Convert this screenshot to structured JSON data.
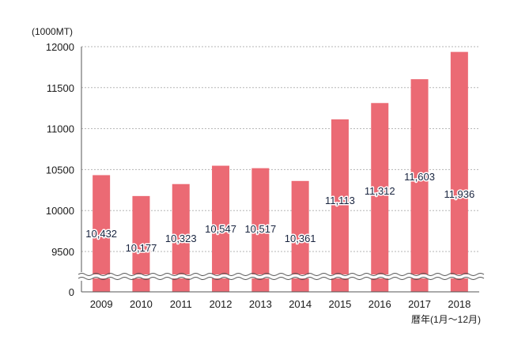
{
  "chart_data": {
    "type": "bar",
    "ylabel": "(1000MT)",
    "xlabel": "暦年(1月〜12月)",
    "categories": [
      "2009",
      "2010",
      "2011",
      "2012",
      "2013",
      "2014",
      "2015",
      "2016",
      "2017",
      "2018"
    ],
    "values": [
      10432,
      10177,
      10323,
      10547,
      10517,
      10361,
      11113,
      11312,
      11603,
      11936
    ],
    "value_labels": [
      "10,432",
      "10,177",
      "10,323",
      "10,547",
      "10,517",
      "10,361",
      "11,113",
      "11,312",
      "11,603",
      "11,936"
    ],
    "y_ticks": [
      9500,
      10000,
      10500,
      11000,
      11500,
      12000
    ],
    "y_tick_labels": [
      "9500",
      "10000",
      "10500",
      "11000",
      "11500",
      "12000"
    ],
    "y_zero_label": "0",
    "ylim": [
      9000,
      12000
    ],
    "axis_break": true,
    "grid": true,
    "bar_color": "#eb6a74",
    "grid_color": "#b5b5b5"
  }
}
